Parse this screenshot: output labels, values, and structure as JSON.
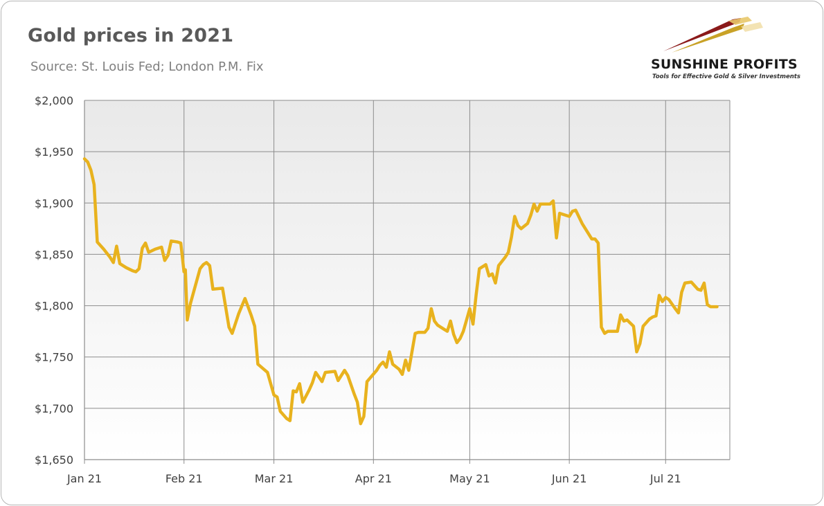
{
  "header": {
    "title": "Gold prices in 2021",
    "subtitle": "Source: St. Louis Fed; London P.M. Fix"
  },
  "logo": {
    "name": "SUNSHINE PROFITS",
    "tagline": "Tools for Effective Gold & Silver Investments",
    "colors": [
      "#8b1a1a",
      "#c9a227",
      "#e8c86a"
    ]
  },
  "chart_data": {
    "type": "line",
    "title": "Gold prices in 2021",
    "subtitle": "Source: St. Louis Fed; London P.M. Fix",
    "xlabel": "",
    "ylabel": "",
    "x_ticks": [
      "Jan 21",
      "Feb 21",
      "Mar 21",
      "Apr 21",
      "May 21",
      "Jun 21",
      "Jul 21"
    ],
    "y_ticks": [
      "$1,650",
      "$1,700",
      "$1,750",
      "$1,800",
      "$1,850",
      "$1,900",
      "$1,950",
      "$2,000"
    ],
    "ylim": [
      1650,
      2000
    ],
    "xlim": [
      "2021-01-01",
      "2021-07-21"
    ],
    "grid": true,
    "series": [
      {
        "color": "#e8b21e",
        "points": [
          [
            "2021-01-01",
            1943
          ],
          [
            "2021-01-02",
            1940
          ],
          [
            "2021-01-03",
            1932
          ],
          [
            "2021-01-04",
            1918
          ],
          [
            "2021-01-05",
            1862
          ],
          [
            "2021-01-07",
            1855
          ],
          [
            "2021-01-09",
            1847
          ],
          [
            "2021-01-10",
            1842
          ],
          [
            "2021-01-11",
            1858
          ],
          [
            "2021-01-12",
            1841
          ],
          [
            "2021-01-14",
            1837
          ],
          [
            "2021-01-16",
            1834
          ],
          [
            "2021-01-17",
            1833
          ],
          [
            "2021-01-18",
            1836
          ],
          [
            "2021-01-19",
            1856
          ],
          [
            "2021-01-20",
            1861
          ],
          [
            "2021-01-21",
            1852
          ],
          [
            "2021-01-23",
            1855
          ],
          [
            "2021-01-25",
            1857
          ],
          [
            "2021-01-26",
            1844
          ],
          [
            "2021-01-27",
            1849
          ],
          [
            "2021-01-28",
            1863
          ],
          [
            "2021-01-30",
            1862
          ],
          [
            "2021-01-31",
            1861
          ],
          [
            "2021-02-01",
            1833
          ],
          [
            "2021-02-01",
            1835
          ],
          [
            "2021-02-02",
            1786
          ],
          [
            "2021-02-03",
            1802
          ],
          [
            "2021-02-06",
            1836
          ],
          [
            "2021-02-07",
            1840
          ],
          [
            "2021-02-08",
            1842
          ],
          [
            "2021-02-09",
            1839
          ],
          [
            "2021-02-10",
            1816
          ],
          [
            "2021-02-13",
            1817
          ],
          [
            "2021-02-15",
            1779
          ],
          [
            "2021-02-16",
            1773
          ],
          [
            "2021-02-18",
            1792
          ],
          [
            "2021-02-20",
            1807
          ],
          [
            "2021-02-22",
            1790
          ],
          [
            "2021-02-23",
            1780
          ],
          [
            "2021-02-24",
            1743
          ],
          [
            "2021-02-27",
            1735
          ],
          [
            "2021-03-01",
            1713
          ],
          [
            "2021-03-02",
            1711
          ],
          [
            "2021-03-03",
            1697
          ],
          [
            "2021-03-05",
            1690
          ],
          [
            "2021-03-06",
            1688
          ],
          [
            "2021-03-07",
            1717
          ],
          [
            "2021-03-08",
            1716
          ],
          [
            "2021-03-09",
            1724
          ],
          [
            "2021-03-10",
            1706
          ],
          [
            "2021-03-12",
            1718
          ],
          [
            "2021-03-13",
            1725
          ],
          [
            "2021-03-14",
            1735
          ],
          [
            "2021-03-16",
            1726
          ],
          [
            "2021-03-17",
            1735
          ],
          [
            "2021-03-20",
            1736
          ],
          [
            "2021-03-21",
            1727
          ],
          [
            "2021-03-23",
            1737
          ],
          [
            "2021-03-24",
            1732
          ],
          [
            "2021-03-26",
            1714
          ],
          [
            "2021-03-27",
            1706
          ],
          [
            "2021-03-28",
            1685
          ],
          [
            "2021-03-29",
            1692
          ],
          [
            "2021-03-30",
            1726
          ],
          [
            "2021-04-02",
            1737
          ],
          [
            "2021-04-03",
            1742
          ],
          [
            "2021-04-04",
            1745
          ],
          [
            "2021-04-05",
            1740
          ],
          [
            "2021-04-06",
            1755
          ],
          [
            "2021-04-07",
            1743
          ],
          [
            "2021-04-09",
            1738
          ],
          [
            "2021-04-10",
            1733
          ],
          [
            "2021-04-11",
            1747
          ],
          [
            "2021-04-12",
            1737
          ],
          [
            "2021-04-14",
            1773
          ],
          [
            "2021-04-15",
            1774
          ],
          [
            "2021-04-17",
            1774
          ],
          [
            "2021-04-18",
            1778
          ],
          [
            "2021-04-19",
            1797
          ],
          [
            "2021-04-20",
            1785
          ],
          [
            "2021-04-21",
            1781
          ],
          [
            "2021-04-23",
            1777
          ],
          [
            "2021-04-24",
            1775
          ],
          [
            "2021-04-25",
            1785
          ],
          [
            "2021-04-26",
            1772
          ],
          [
            "2021-04-27",
            1764
          ],
          [
            "2021-04-28",
            1768
          ],
          [
            "2021-04-29",
            1775
          ],
          [
            "2021-04-30",
            1786
          ],
          [
            "2021-05-01",
            1797
          ],
          [
            "2021-05-02",
            1782
          ],
          [
            "2021-05-03",
            1811
          ],
          [
            "2021-05-04",
            1836
          ],
          [
            "2021-05-06",
            1840
          ],
          [
            "2021-05-07",
            1829
          ],
          [
            "2021-05-08",
            1831
          ],
          [
            "2021-05-09",
            1822
          ],
          [
            "2021-05-10",
            1839
          ],
          [
            "2021-05-12",
            1847
          ],
          [
            "2021-05-13",
            1852
          ],
          [
            "2021-05-14",
            1867
          ],
          [
            "2021-05-15",
            1887
          ],
          [
            "2021-05-16",
            1878
          ],
          [
            "2021-05-17",
            1875
          ],
          [
            "2021-05-19",
            1880
          ],
          [
            "2021-05-20",
            1888
          ],
          [
            "2021-05-21",
            1899
          ],
          [
            "2021-05-22",
            1892
          ],
          [
            "2021-05-23",
            1899
          ],
          [
            "2021-05-26",
            1899
          ],
          [
            "2021-05-27",
            1902
          ],
          [
            "2021-05-28",
            1866
          ],
          [
            "2021-05-29",
            1890
          ],
          [
            "2021-05-31",
            1888
          ],
          [
            "2021-06-01",
            1887
          ],
          [
            "2021-06-02",
            1892
          ],
          [
            "2021-06-03",
            1893
          ],
          [
            "2021-06-05",
            1880
          ],
          [
            "2021-06-07",
            1870
          ],
          [
            "2021-06-08",
            1865
          ],
          [
            "2021-06-09",
            1865
          ],
          [
            "2021-06-10",
            1861
          ],
          [
            "2021-06-11",
            1779
          ],
          [
            "2021-06-12",
            1773
          ],
          [
            "2021-06-13",
            1775
          ],
          [
            "2021-06-15",
            1775
          ],
          [
            "2021-06-16",
            1775
          ],
          [
            "2021-06-17",
            1791
          ],
          [
            "2021-06-18",
            1785
          ],
          [
            "2021-06-19",
            1786
          ],
          [
            "2021-06-21",
            1780
          ],
          [
            "2021-06-22",
            1755
          ],
          [
            "2021-06-23",
            1763
          ],
          [
            "2021-06-24",
            1780
          ],
          [
            "2021-06-26",
            1787
          ],
          [
            "2021-06-27",
            1789
          ],
          [
            "2021-06-28",
            1790
          ],
          [
            "2021-06-29",
            1810
          ],
          [
            "2021-06-30",
            1804
          ],
          [
            "2021-07-01",
            1808
          ],
          [
            "2021-07-02",
            1806
          ],
          [
            "2021-07-04",
            1797
          ],
          [
            "2021-07-05",
            1793
          ],
          [
            "2021-07-06",
            1813
          ],
          [
            "2021-07-07",
            1822
          ],
          [
            "2021-07-09",
            1823
          ],
          [
            "2021-07-11",
            1816
          ],
          [
            "2021-07-12",
            1815
          ],
          [
            "2021-07-13",
            1822
          ],
          [
            "2021-07-14",
            1801
          ],
          [
            "2021-07-15",
            1799
          ],
          [
            "2021-07-17",
            1799
          ]
        ]
      }
    ]
  }
}
